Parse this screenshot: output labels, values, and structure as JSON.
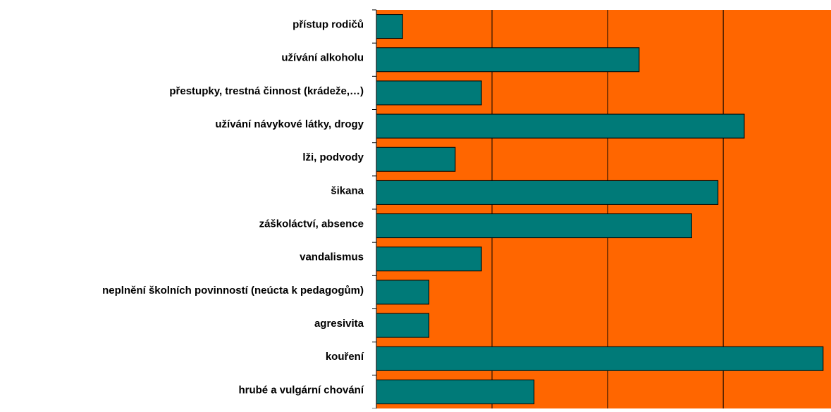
{
  "chart_data": {
    "type": "barh",
    "categories": [
      "přístup rodičů",
      "užívání alkoholu",
      "přestupky, trestná činnost (krádeže,…)",
      "užívání návykové látky, drogy",
      "lži, podvody",
      "šikana",
      "záškoláctví, absence",
      "vandalismus",
      "neplnění školních povinností (neúcta k pedagogům)",
      "agresivita",
      "kouření",
      "hrubé a vulgární chování"
    ],
    "values": [
      1,
      10,
      4,
      14,
      3,
      13,
      12,
      4,
      2,
      2,
      17,
      6
    ],
    "color": "#007a78",
    "background": "#ff6600",
    "xlim": [
      0,
      17.3
    ],
    "xticks": [
      4.4,
      8.8,
      13.2
    ],
    "grid": true
  }
}
